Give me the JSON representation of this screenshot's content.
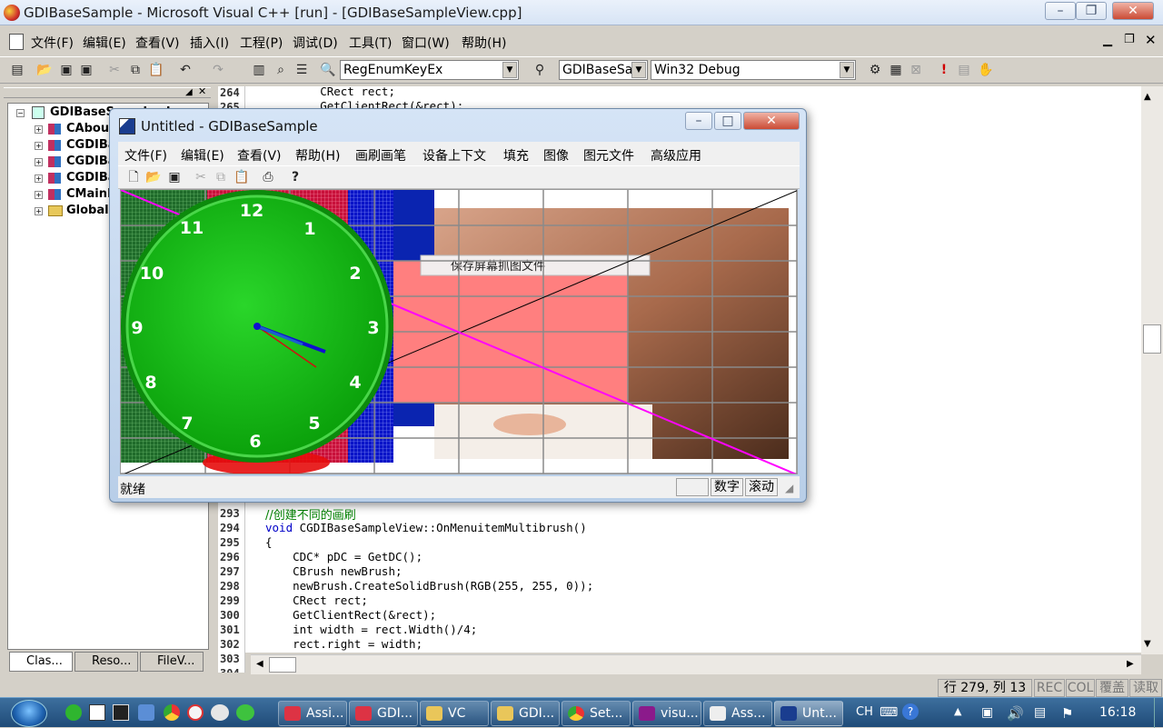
{
  "window": {
    "title": "GDIBaseSample - Microsoft Visual C++ [run] - [GDIBaseSampleView.cpp]"
  },
  "menu": [
    "文件(F)",
    "编辑(E)",
    "查看(V)",
    "插入(I)",
    "工程(P)",
    "调试(D)",
    "工具(T)",
    "窗口(W)",
    "帮助(H)"
  ],
  "toolbar": {
    "function_combo": "RegEnumKeyEx",
    "project_combo": "GDIBaseSa",
    "config_combo": "Win32 Debug"
  },
  "classview": {
    "root": "GDIBaseSample classes",
    "items": [
      "CAboutDlg",
      "CGDIBaseSampleApp",
      "CGDIBaseSampleDoc",
      "CGDIBaseSampleView",
      "CMainFrame",
      "Globals"
    ],
    "tabs": [
      "Clas...",
      "Reso...",
      "FileV..."
    ]
  },
  "editor": {
    "top_lines": [
      {
        "n": "264",
        "text": "        CRect rect;"
      },
      {
        "n": "265",
        "text": "        GetClientRect(&rect);"
      }
    ],
    "bottom_lines": [
      {
        "n": "293",
        "text": "//创建不同的画刷"
      },
      {
        "n": "294",
        "text": "void CGDIBaseSampleView::OnMenuitemMultibrush()"
      },
      {
        "n": "295",
        "text": "{"
      },
      {
        "n": "296",
        "text": "    CDC* pDC = GetDC();"
      },
      {
        "n": "297",
        "text": "    CBrush newBrush;"
      },
      {
        "n": "298",
        "text": "    newBrush.CreateSolidBrush(RGB(255, 255, 0));"
      },
      {
        "n": "299",
        "text": "    CRect rect;"
      },
      {
        "n": "300",
        "text": "    GetClientRect(&rect);"
      },
      {
        "n": "301",
        "text": "    int width = rect.Width()/4;"
      },
      {
        "n": "302",
        "text": "    rect.right = width;"
      },
      {
        "n": "303",
        "text": ""
      },
      {
        "n": "304",
        "text": ""
      }
    ]
  },
  "status": {
    "position": "行 279, 列 13",
    "rec": "REC",
    "col": "COL",
    "ovr": "覆盖",
    "read": "读取"
  },
  "child": {
    "title": "Untitled - GDIBaseSample",
    "menu": [
      "文件(F)",
      "编辑(E)",
      "查看(V)",
      "帮助(H)",
      "画刷画笔",
      "设备上下文",
      "填充",
      "图像",
      "图元文件",
      "高级应用"
    ],
    "popup_item": "保存屏幕抓图文件",
    "status_ready": "就绪",
    "status_num": "数字",
    "status_scroll": "滚动",
    "clock_numbers": [
      "12",
      "1",
      "2",
      "3",
      "4",
      "5",
      "6",
      "7",
      "8",
      "9",
      "10",
      "11"
    ]
  },
  "taskbar": {
    "items": [
      "Assi...",
      "GDI...",
      "VC",
      "GDI...",
      "Set...",
      "visu...",
      "Ass...",
      "Unt..."
    ],
    "ime": "CH",
    "time": "16:18"
  }
}
